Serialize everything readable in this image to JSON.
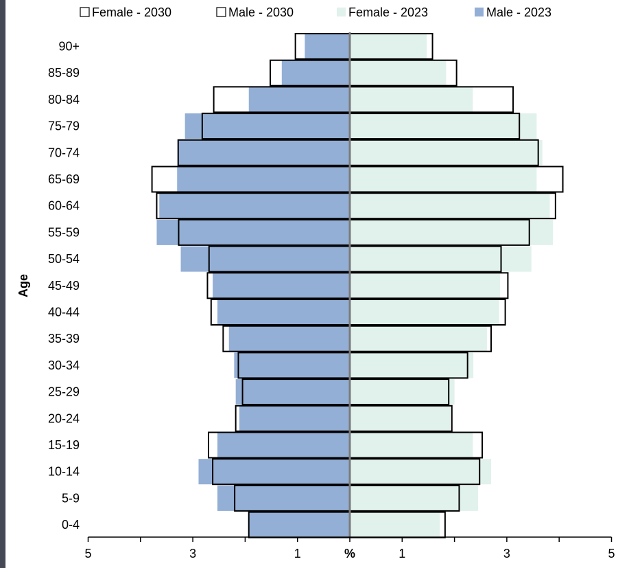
{
  "chart_data": {
    "type": "bar",
    "subtype": "population-pyramid",
    "ylabel": "Age",
    "xlabel": "%",
    "x_ticks_left": [
      "5",
      "3",
      "1"
    ],
    "x_ticks_right": [
      "1",
      "3",
      "5"
    ],
    "xlim": [
      -5,
      5
    ],
    "categories": [
      "0-4",
      "5-9",
      "10-14",
      "15-19",
      "20-24",
      "25-29",
      "30-34",
      "35-39",
      "40-44",
      "45-49",
      "50-54",
      "55-59",
      "60-64",
      "65-69",
      "70-74",
      "75-79",
      "80-84",
      "85-89",
      "90+"
    ],
    "series": [
      {
        "name": "Female - 2030",
        "side": "right",
        "style": "outline",
        "values": [
          1.82,
          2.09,
          2.48,
          2.53,
          1.95,
          1.89,
          2.25,
          2.7,
          2.97,
          3.02,
          2.89,
          3.43,
          3.93,
          4.07,
          3.6,
          3.24,
          3.12,
          2.04,
          1.58
        ]
      },
      {
        "name": "Male - 2030",
        "side": "left",
        "style": "outline",
        "values": [
          1.93,
          2.2,
          2.62,
          2.7,
          2.18,
          2.05,
          2.13,
          2.42,
          2.65,
          2.72,
          2.69,
          3.27,
          3.69,
          3.78,
          3.28,
          2.82,
          2.6,
          1.52,
          1.04
        ]
      },
      {
        "name": "Female - 2023",
        "side": "right",
        "style": "fill",
        "values": [
          1.72,
          2.45,
          2.7,
          2.35,
          1.92,
          2.0,
          2.36,
          2.62,
          2.85,
          2.87,
          3.47,
          3.88,
          3.82,
          3.57,
          3.68,
          3.57,
          2.35,
          1.84,
          1.47
        ]
      },
      {
        "name": "Male - 2023",
        "side": "left",
        "style": "fill",
        "values": [
          1.93,
          2.53,
          2.89,
          2.53,
          2.11,
          2.18,
          2.21,
          2.31,
          2.53,
          2.62,
          3.23,
          3.69,
          3.64,
          3.3,
          3.27,
          3.15,
          1.93,
          1.3,
          0.86
        ]
      }
    ],
    "colors": {
      "male_2023": "#94afd6",
      "female_2023": "#e1f1ec",
      "outline": "#000000",
      "center_line": "#7a7a7a"
    },
    "legend_position": "top"
  }
}
